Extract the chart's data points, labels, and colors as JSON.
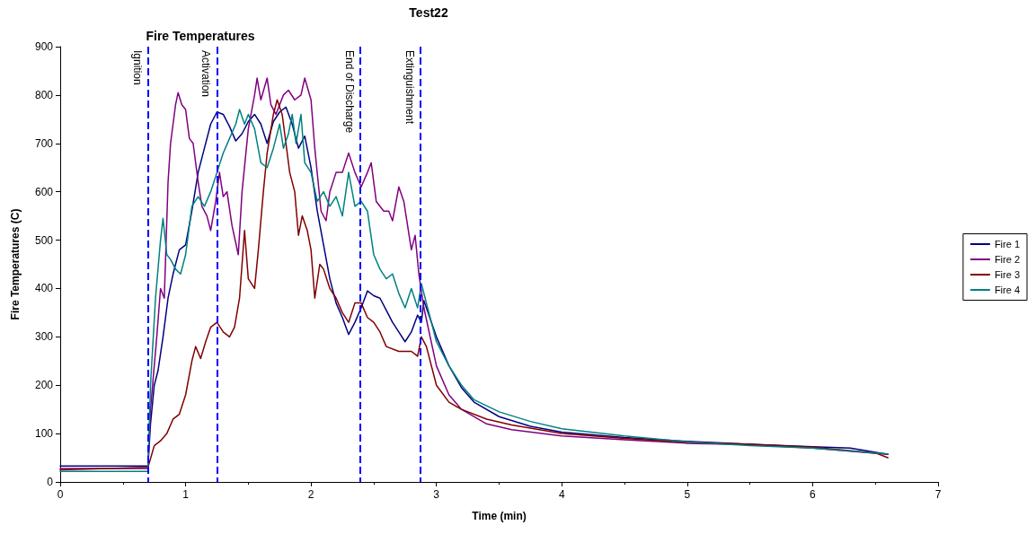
{
  "chart_data": {
    "type": "line",
    "title": "Test22",
    "subtitle": "Fire Temperatures",
    "xlabel": "Time (min)",
    "ylabel": "Fire Temperatures (C)",
    "xlim": [
      0,
      7
    ],
    "xticks": [
      0,
      1,
      2,
      3,
      4,
      5,
      6,
      7
    ],
    "ylim": [
      0,
      900
    ],
    "yticks": [
      0,
      100,
      200,
      300,
      400,
      500,
      600,
      700,
      800,
      900
    ],
    "grid": false,
    "legend": "right",
    "marker": "none",
    "line_style": "solid",
    "ref_lines": [
      {
        "axis": "x",
        "value": 0.7,
        "label": "Ignition",
        "color": "#0000ff",
        "line_style": "dashed"
      },
      {
        "axis": "x",
        "value": 1.25,
        "label": "Activation",
        "color": "#0000ff",
        "line_style": "dashed"
      },
      {
        "axis": "x",
        "value": 2.39,
        "label": "End of Discharge",
        "color": "#0000ff",
        "line_style": "dashed"
      },
      {
        "axis": "x",
        "value": 2.87,
        "label": "Extinguishment",
        "color": "#0000ff",
        "line_style": "dashed"
      }
    ],
    "series": [
      {
        "name": "Fire 1",
        "color": "#000080",
        "x": [
          0,
          0.7,
          0.72,
          0.75,
          0.78,
          0.82,
          0.86,
          0.9,
          0.95,
          1.0,
          1.05,
          1.1,
          1.15,
          1.2,
          1.25,
          1.3,
          1.35,
          1.4,
          1.45,
          1.5,
          1.55,
          1.6,
          1.65,
          1.7,
          1.75,
          1.8,
          1.85,
          1.9,
          1.95,
          2.0,
          2.05,
          2.1,
          2.15,
          2.2,
          2.25,
          2.3,
          2.35,
          2.4,
          2.45,
          2.5,
          2.55,
          2.6,
          2.65,
          2.7,
          2.75,
          2.8,
          2.85,
          2.88,
          2.9,
          3.0,
          3.1,
          3.2,
          3.3,
          3.5,
          3.75,
          4.0,
          4.5,
          5.0,
          5.5,
          6.0,
          6.3,
          6.6
        ],
        "values": [
          33,
          33,
          120,
          200,
          230,
          300,
          380,
          430,
          480,
          490,
          560,
          640,
          690,
          740,
          765,
          760,
          735,
          705,
          720,
          745,
          760,
          740,
          700,
          745,
          765,
          775,
          740,
          690,
          715,
          650,
          560,
          490,
          420,
          370,
          340,
          305,
          330,
          360,
          395,
          385,
          380,
          355,
          330,
          310,
          290,
          310,
          345,
          330,
          375,
          300,
          240,
          195,
          165,
          135,
          115,
          103,
          92,
          84,
          78,
          73,
          70,
          57
        ]
      },
      {
        "name": "Fire 2",
        "color": "#800080",
        "x": [
          0,
          0.7,
          0.72,
          0.77,
          0.8,
          0.83,
          0.86,
          0.88,
          0.92,
          0.94,
          0.97,
          1.0,
          1.03,
          1.06,
          1.1,
          1.13,
          1.17,
          1.2,
          1.24,
          1.27,
          1.3,
          1.33,
          1.37,
          1.42,
          1.45,
          1.5,
          1.55,
          1.57,
          1.6,
          1.65,
          1.68,
          1.72,
          1.78,
          1.82,
          1.87,
          1.92,
          1.95,
          2.0,
          2.03,
          2.08,
          2.12,
          2.15,
          2.2,
          2.25,
          2.3,
          2.35,
          2.4,
          2.45,
          2.48,
          2.52,
          2.58,
          2.62,
          2.65,
          2.7,
          2.74,
          2.8,
          2.83,
          2.86,
          2.9,
          3.0,
          3.1,
          3.2,
          3.4,
          3.6,
          4.0,
          4.5,
          5.0,
          5.5,
          6.0,
          6.6
        ],
        "values": [
          28,
          28,
          150,
          300,
          400,
          380,
          620,
          700,
          780,
          805,
          780,
          770,
          710,
          700,
          620,
          570,
          550,
          520,
          580,
          640,
          590,
          600,
          530,
          470,
          600,
          730,
          800,
          835,
          790,
          835,
          780,
          760,
          800,
          810,
          790,
          800,
          835,
          790,
          690,
          560,
          540,
          600,
          640,
          640,
          680,
          640,
          610,
          640,
          660,
          580,
          560,
          560,
          540,
          610,
          580,
          480,
          510,
          430,
          360,
          240,
          180,
          150,
          120,
          108,
          95,
          87,
          80,
          77,
          70,
          57
        ]
      },
      {
        "name": "Fire 3",
        "color": "#800000",
        "x": [
          0,
          0.7,
          0.75,
          0.8,
          0.85,
          0.9,
          0.95,
          1.0,
          1.05,
          1.08,
          1.12,
          1.16,
          1.2,
          1.25,
          1.3,
          1.35,
          1.39,
          1.43,
          1.47,
          1.5,
          1.55,
          1.58,
          1.62,
          1.65,
          1.7,
          1.73,
          1.77,
          1.8,
          1.83,
          1.87,
          1.9,
          1.93,
          1.97,
          2.0,
          2.03,
          2.07,
          2.1,
          2.15,
          2.2,
          2.25,
          2.3,
          2.35,
          2.4,
          2.45,
          2.5,
          2.55,
          2.6,
          2.7,
          2.8,
          2.85,
          2.88,
          2.92,
          3.0,
          3.1,
          3.2,
          3.4,
          3.6,
          4.0,
          4.5,
          5.0,
          5.5,
          6.0,
          6.5,
          6.6
        ],
        "values": [
          25,
          30,
          75,
          85,
          100,
          130,
          140,
          180,
          250,
          280,
          255,
          290,
          320,
          330,
          310,
          300,
          320,
          380,
          520,
          420,
          400,
          480,
          600,
          680,
          760,
          790,
          760,
          700,
          640,
          600,
          510,
          550,
          520,
          480,
          380,
          450,
          440,
          400,
          380,
          350,
          330,
          370,
          370,
          340,
          330,
          310,
          280,
          270,
          270,
          260,
          300,
          280,
          200,
          165,
          150,
          130,
          118,
          100,
          90,
          82,
          78,
          72,
          60,
          50
        ]
      },
      {
        "name": "Fire 4",
        "color": "#008080",
        "x": [
          0,
          0.7,
          0.72,
          0.76,
          0.8,
          0.82,
          0.85,
          0.88,
          0.92,
          0.96,
          1.0,
          1.05,
          1.1,
          1.15,
          1.2,
          1.25,
          1.3,
          1.35,
          1.4,
          1.43,
          1.47,
          1.5,
          1.55,
          1.6,
          1.65,
          1.7,
          1.75,
          1.78,
          1.82,
          1.85,
          1.88,
          1.92,
          1.95,
          2.0,
          2.05,
          2.1,
          2.15,
          2.2,
          2.25,
          2.3,
          2.35,
          2.4,
          2.45,
          2.5,
          2.55,
          2.6,
          2.65,
          2.7,
          2.75,
          2.8,
          2.85,
          2.88,
          2.92,
          3.0,
          3.1,
          3.2,
          3.3,
          3.5,
          3.75,
          4.0,
          4.5,
          5.0,
          5.5,
          6.0,
          6.6
        ],
        "values": [
          22,
          22,
          200,
          380,
          500,
          545,
          470,
          460,
          440,
          430,
          470,
          570,
          590,
          570,
          600,
          640,
          680,
          710,
          740,
          770,
          740,
          760,
          730,
          660,
          650,
          690,
          740,
          690,
          720,
          760,
          700,
          760,
          660,
          640,
          580,
          600,
          570,
          590,
          550,
          640,
          570,
          580,
          560,
          470,
          440,
          420,
          430,
          390,
          360,
          400,
          360,
          410,
          370,
          290,
          240,
          200,
          170,
          145,
          125,
          110,
          95,
          83,
          75,
          70,
          58
        ]
      }
    ]
  }
}
